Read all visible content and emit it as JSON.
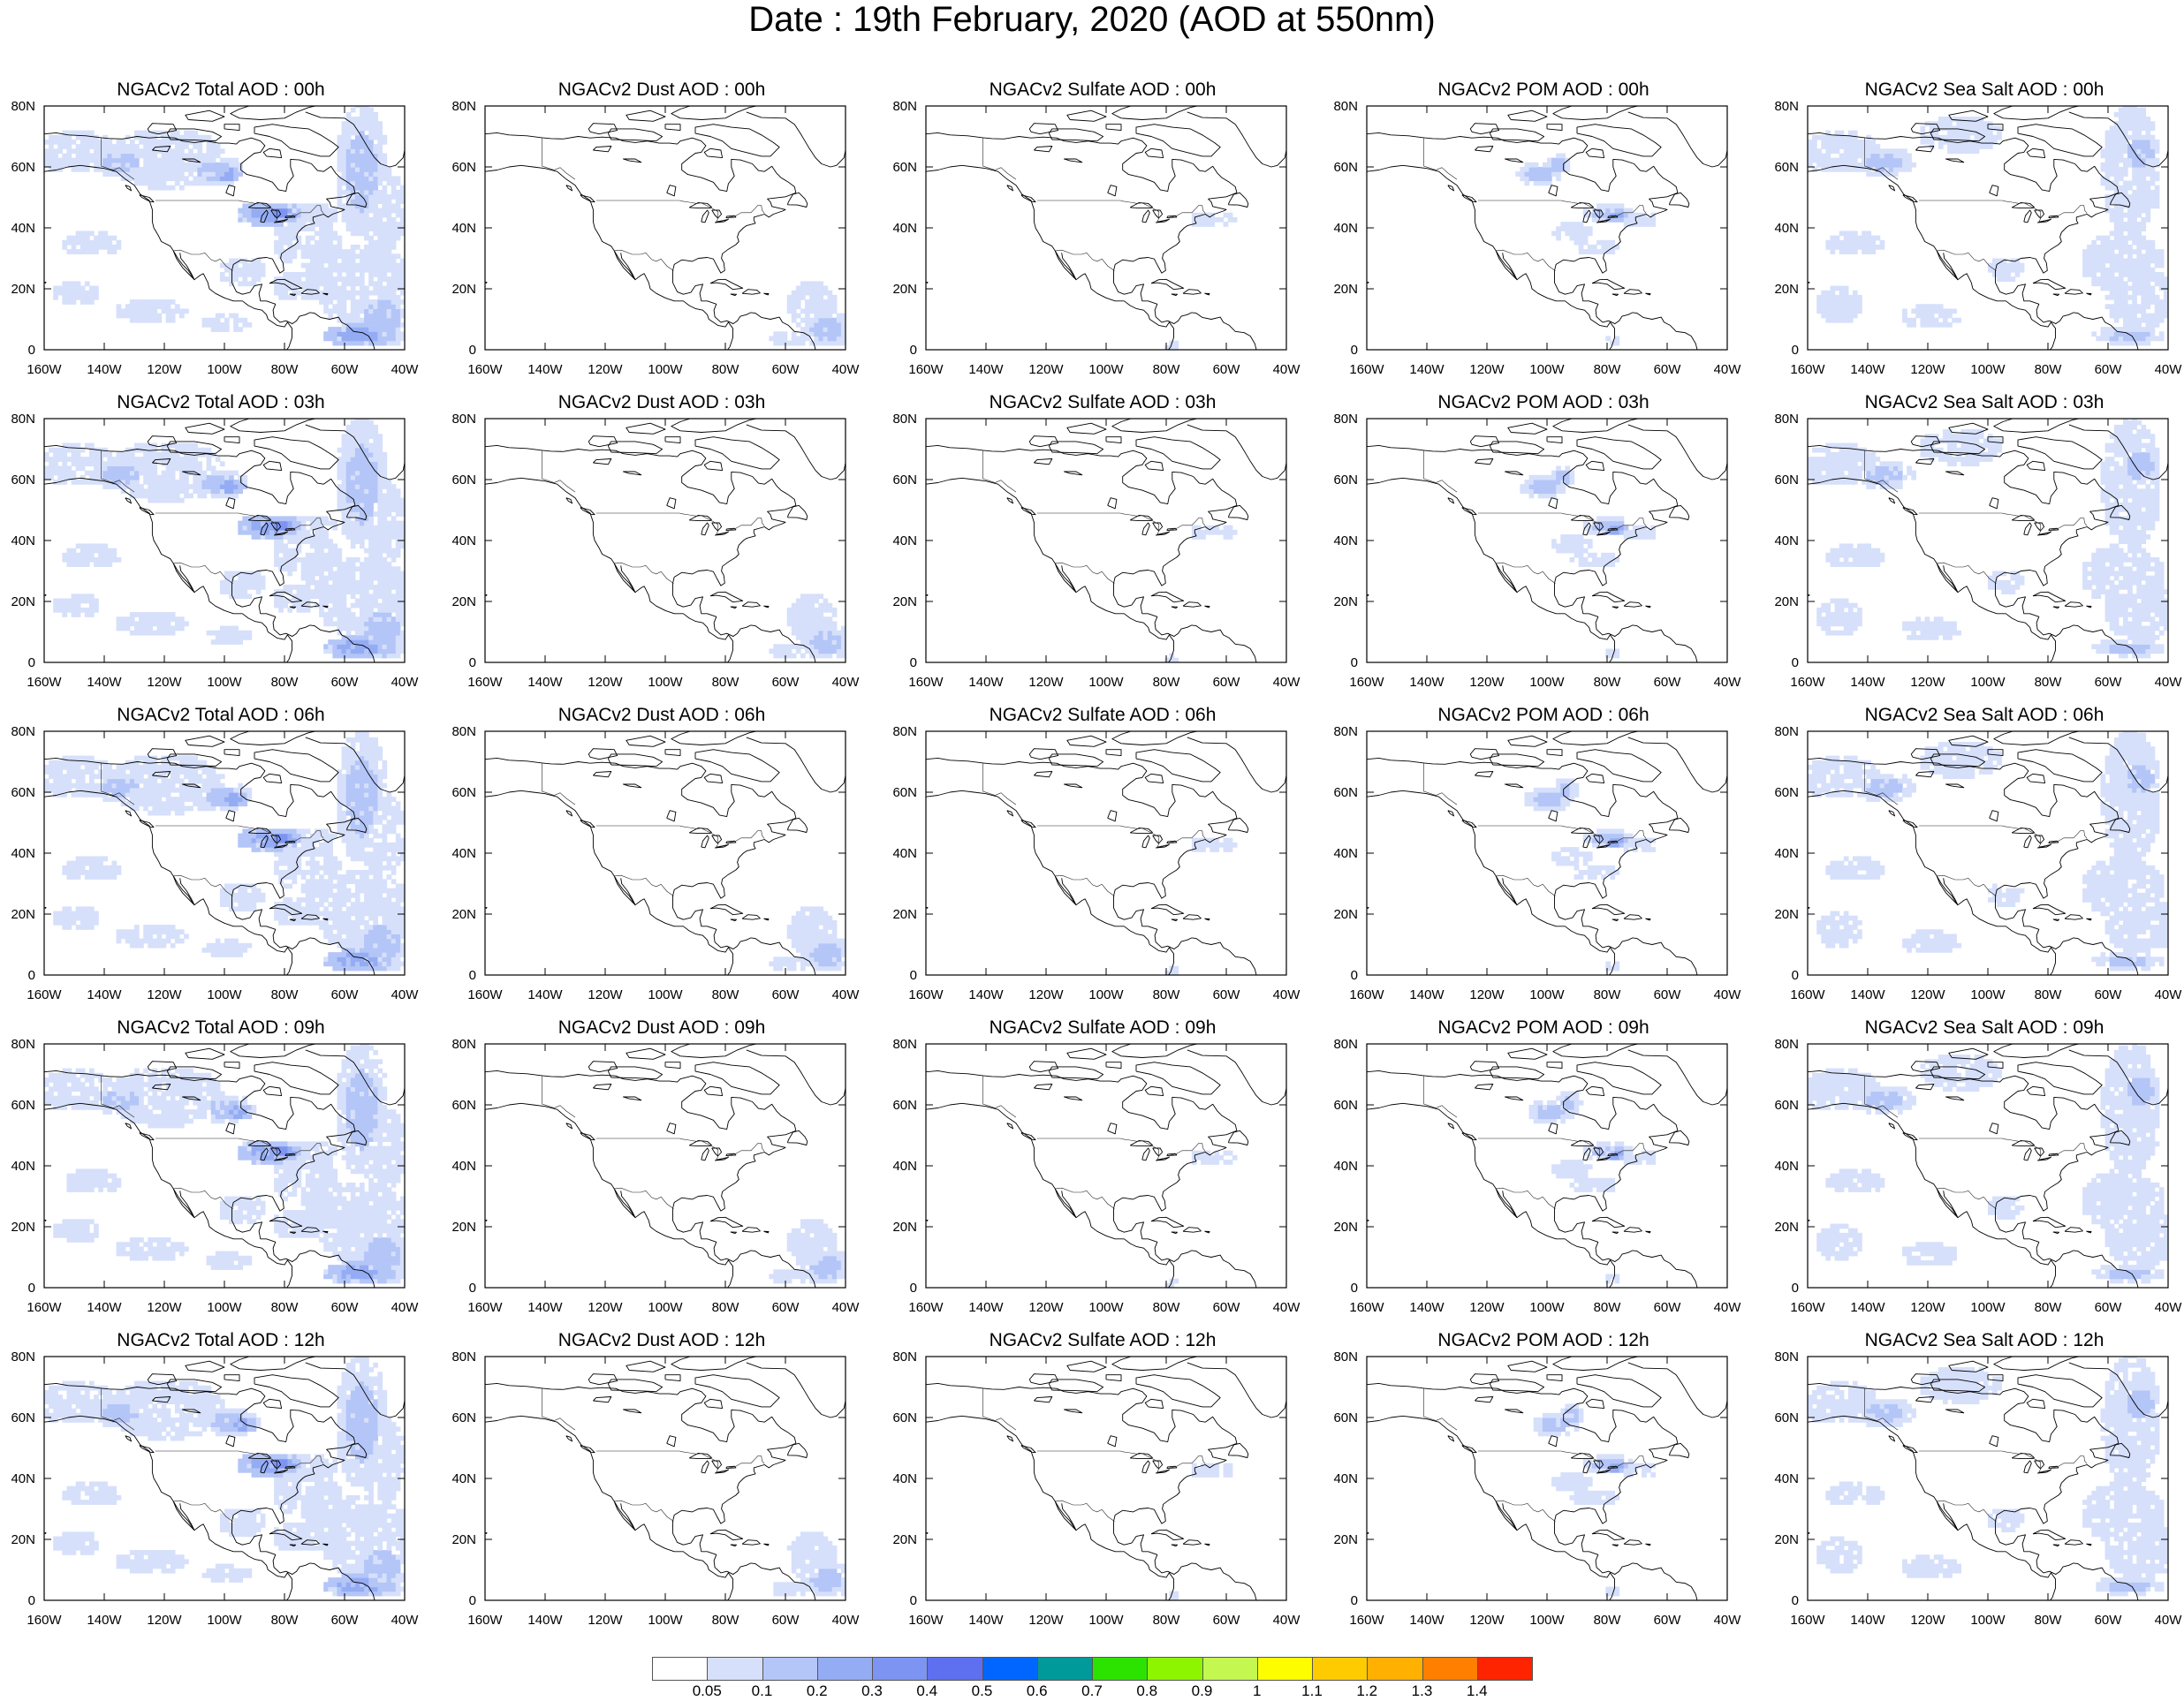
{
  "title": "Date : 19th February, 2020 (AOD at 550nm)",
  "panels": [
    {
      "title": "NGACv2 Total AOD : 00h",
      "kind": "total"
    },
    {
      "title": "NGACv2 Dust AOD : 00h",
      "kind": "dust"
    },
    {
      "title": "NGACv2 Sulfate AOD : 00h",
      "kind": "sulfate"
    },
    {
      "title": "NGACv2 POM AOD : 00h",
      "kind": "pom"
    },
    {
      "title": "NGACv2 Sea Salt AOD : 00h",
      "kind": "seasalt"
    },
    {
      "title": "NGACv2 Total AOD : 03h",
      "kind": "total"
    },
    {
      "title": "NGACv2 Dust AOD : 03h",
      "kind": "dust"
    },
    {
      "title": "NGACv2 Sulfate AOD : 03h",
      "kind": "sulfate"
    },
    {
      "title": "NGACv2 POM AOD : 03h",
      "kind": "pom"
    },
    {
      "title": "NGACv2 Sea Salt AOD : 03h",
      "kind": "seasalt"
    },
    {
      "title": "NGACv2 Total AOD : 06h",
      "kind": "total"
    },
    {
      "title": "NGACv2 Dust AOD : 06h",
      "kind": "dust"
    },
    {
      "title": "NGACv2 Sulfate AOD : 06h",
      "kind": "sulfate"
    },
    {
      "title": "NGACv2 POM AOD : 06h",
      "kind": "pom"
    },
    {
      "title": "NGACv2 Sea Salt AOD : 06h",
      "kind": "seasalt"
    },
    {
      "title": "NGACv2 Total AOD : 09h",
      "kind": "total"
    },
    {
      "title": "NGACv2 Dust AOD : 09h",
      "kind": "dust"
    },
    {
      "title": "NGACv2 Sulfate AOD : 09h",
      "kind": "sulfate"
    },
    {
      "title": "NGACv2 POM AOD : 09h",
      "kind": "pom"
    },
    {
      "title": "NGACv2 Sea Salt  AOD : 09h",
      "kind": "seasalt"
    },
    {
      "title": "NGACv2 Total AOD  : 12h",
      "kind": "total"
    },
    {
      "title": "NGACv2 Dust AOD : 12h",
      "kind": "dust"
    },
    {
      "title": "NGACv2 Sulfate AOD : 12h",
      "kind": "sulfate"
    },
    {
      "title": "NGACv2 POM  AOD : 12h",
      "kind": "pom"
    },
    {
      "title": "NGACv2 Sea Salt  AOD : 12h",
      "kind": "seasalt"
    }
  ],
  "axes": {
    "lon_ticks": [
      "160W",
      "140W",
      "120W",
      "100W",
      "80W",
      "60W",
      "40W"
    ],
    "lat_ticks": [
      "0",
      "20N",
      "40N",
      "60N",
      "80N"
    ]
  },
  "colorbar": {
    "colors": [
      "#ffffff",
      "#d6e0fb",
      "#b4c5f7",
      "#94acf4",
      "#7d94f2",
      "#5e6fef",
      "#0066ff",
      "#009a9a",
      "#2ce300",
      "#8df500",
      "#c4f850",
      "#fdfd00",
      "#fecb00",
      "#ffb000",
      "#ff7f00",
      "#ff2400"
    ],
    "labels": [
      "0.05",
      "0.1",
      "0.2",
      "0.3",
      "0.4",
      "0.5",
      "0.6",
      "0.7",
      "0.8",
      "0.9",
      "1",
      "1.1",
      "1.2",
      "1.3",
      "1.4"
    ]
  }
}
